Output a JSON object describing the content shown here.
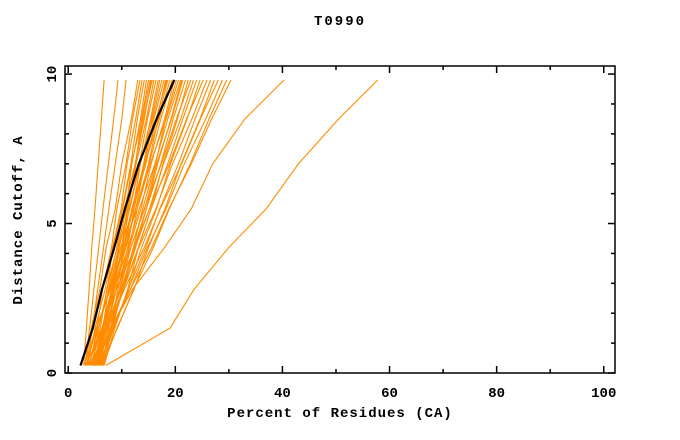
{
  "page": {
    "background_color": "#ffffff"
  },
  "chart_data": {
    "type": "line",
    "title": "T0990",
    "xlabel": "Percent of Residues (CA)",
    "ylabel": "Distance Cutoff, A",
    "legend": "none",
    "grid": "off",
    "colors": {
      "model_line": "#FF8C00",
      "reference_line": "#000000",
      "frame": "#000000"
    },
    "x_axis": {
      "major_ticks": [
        0,
        20,
        40,
        60,
        80,
        100
      ],
      "major_tick_labels": [
        "0",
        "20",
        "40",
        "60",
        "80",
        "100"
      ],
      "minor_ticks": [
        10,
        30,
        50,
        70,
        90
      ],
      "range_shown": [
        -0.6,
        102.1
      ]
    },
    "y_axis": {
      "major_ticks": [
        0,
        5,
        10
      ],
      "major_tick_labels": [
        "0",
        "5",
        "10"
      ],
      "minor_ticks": [
        1,
        2,
        3,
        4,
        6,
        7,
        8,
        9
      ],
      "range_shown": [
        0,
        10.27
      ]
    },
    "y_points": [
      0.25,
      1.5,
      2.8,
      4.2,
      5.5,
      7.0,
      8.5,
      9.8
    ],
    "model_lines": [
      [
        3.2,
        4.3,
        5.9,
        7.1,
        8.8,
        10.0,
        11.8,
        13.0
      ],
      [
        4.0,
        5.4,
        6.4,
        8.1,
        9.1,
        10.8,
        12.0,
        13.4
      ],
      [
        4.6,
        5.7,
        7.3,
        8.3,
        9.9,
        11.0,
        12.6,
        13.8
      ],
      [
        5.2,
        6.5,
        7.5,
        9.1,
        10.1,
        11.7,
        12.9,
        14.2
      ],
      [
        5.8,
        6.9,
        8.3,
        9.3,
        10.8,
        11.9,
        13.5,
        14.6
      ],
      [
        6.3,
        7.6,
        8.5,
        10.0,
        11.0,
        12.6,
        13.7,
        15.0
      ],
      [
        3.6,
        5.0,
        6.9,
        8.3,
        10.2,
        11.8,
        13.8,
        15.3
      ],
      [
        4.3,
        6.0,
        7.2,
        9.1,
        10.5,
        12.5,
        14.0,
        15.7
      ],
      [
        5.0,
        6.3,
        8.1,
        9.5,
        11.2,
        12.7,
        14.6,
        16.0
      ],
      [
        5.5,
        7.1,
        8.3,
        10.1,
        11.4,
        13.3,
        14.8,
        16.4
      ],
      [
        6.0,
        7.3,
        9.0,
        10.4,
        12.1,
        13.5,
        15.4,
        16.8
      ],
      [
        6.6,
        8.1,
        9.3,
        11.1,
        12.3,
        14.1,
        15.6,
        17.1
      ],
      [
        3.9,
        5.6,
        7.7,
        9.4,
        11.5,
        13.4,
        15.8,
        17.5
      ],
      [
        4.8,
        6.7,
        8.2,
        10.3,
        11.9,
        14.2,
        16.0,
        17.9
      ],
      [
        5.4,
        7.0,
        9.0,
        10.6,
        12.6,
        14.3,
        16.6,
        18.2
      ],
      [
        6.1,
        7.9,
        9.3,
        11.4,
        12.9,
        15.0,
        16.8,
        18.6
      ],
      [
        3.4,
        5.3,
        7.8,
        9.8,
        12.2,
        14.3,
        17.0,
        19.0
      ],
      [
        4.5,
        6.6,
        8.4,
        10.8,
        12.6,
        15.1,
        17.3,
        19.4
      ],
      [
        5.6,
        7.4,
        9.6,
        11.4,
        13.6,
        15.5,
        18.0,
        19.8
      ],
      [
        6.4,
        8.3,
        10.0,
        12.2,
        13.9,
        16.3,
        18.2,
        20.2
      ],
      [
        3.0,
        5.2,
        7.9,
        10.2,
        12.9,
        15.3,
        18.3,
        20.6
      ],
      [
        4.1,
        6.4,
        8.5,
        11.2,
        13.3,
        16.2,
        18.6,
        21.0
      ],
      [
        5.1,
        7.1,
        9.7,
        11.7,
        14.3,
        16.5,
        19.3,
        21.4
      ],
      [
        5.9,
        8.1,
        10.1,
        12.6,
        14.6,
        17.3,
        19.6,
        21.9
      ],
      [
        6.7,
        8.7,
        11.1,
        13.1,
        15.5,
        17.7,
        20.4,
        22.4
      ],
      [
        3.7,
        6.3,
        8.7,
        11.7,
        14.2,
        17.4,
        20.2,
        22.9
      ],
      [
        4.7,
        7.0,
        9.9,
        12.3,
        15.2,
        17.8,
        21.0,
        23.4
      ],
      [
        5.3,
        7.8,
        10.2,
        13.1,
        15.5,
        18.6,
        21.4,
        24.0
      ],
      [
        6.2,
        8.5,
        11.3,
        13.7,
        16.5,
        19.1,
        22.2,
        24.6
      ],
      [
        3.3,
        6.3,
        9.0,
        12.5,
        15.2,
        18.9,
        22.1,
        25.2
      ],
      [
        4.4,
        7.1,
        10.3,
        13.2,
        16.4,
        19.5,
        23.1,
        25.9
      ],
      [
        5.7,
        8.5,
        11.2,
        14.5,
        17.1,
        20.6,
        23.7,
        26.6
      ],
      [
        6.5,
        9.1,
        12.3,
        15.0,
        18.1,
        21.1,
        24.6,
        27.3
      ],
      [
        4.2,
        7.4,
        10.5,
        14.2,
        17.2,
        21.2,
        24.7,
        28.0
      ],
      [
        5.0,
        8.0,
        11.6,
        14.8,
        18.3,
        21.7,
        25.7,
        28.8
      ],
      [
        6.0,
        9.2,
        12.2,
        15.9,
        18.9,
        22.8,
        26.3,
        29.6
      ],
      [
        4.9,
        8.3,
        11.6,
        15.6,
        18.8,
        23.0,
        26.8,
        30.4
      ],
      [
        5.5,
        6.7,
        8.4,
        9.5,
        11.2,
        12.5,
        14.2,
        15.5
      ],
      [
        4.6,
        6.5,
        8.2,
        10.4,
        12.1,
        14.5,
        16.4,
        18.4
      ],
      [
        6.1,
        8.0,
        10.3,
        12.3,
        14.6,
        16.7,
        19.2,
        21.2
      ],
      [
        2.9,
        3.4,
        3.9,
        4.4,
        5.0,
        5.6,
        6.2,
        6.7
      ],
      [
        3.1,
        4.0,
        4.8,
        5.7,
        6.5,
        7.5,
        8.5,
        9.3
      ],
      [
        3.5,
        4.5,
        5.5,
        6.6,
        7.6,
        8.8,
        10.0,
        10.8
      ],
      [
        5.0,
        8.0,
        12.0,
        18.0,
        23.0,
        27.0,
        33.0,
        40.3
      ],
      [
        7.0,
        19.0,
        23.5,
        30.0,
        37.0,
        43.0,
        50.5,
        57.8
      ]
    ],
    "reference_line": [
      2.3,
      4.6,
      6.3,
      8.6,
      10.6,
      13.2,
      16.5,
      19.8
    ]
  }
}
